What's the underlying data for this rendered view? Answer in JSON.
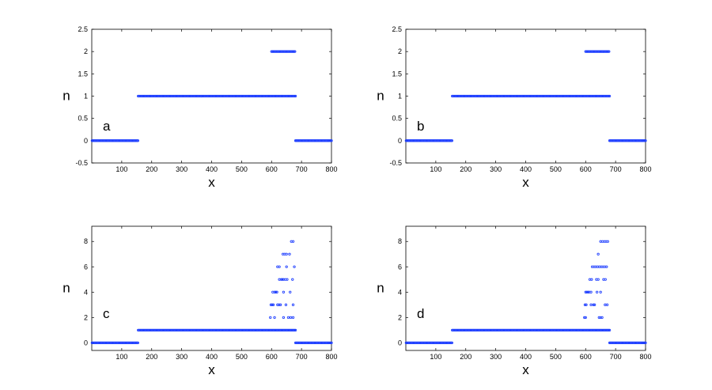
{
  "figure": {
    "marker_color": "#1f3fff",
    "marker": "circle"
  },
  "chart_data": [
    {
      "type": "scatter",
      "panel_label": "a",
      "xlabel": "x",
      "ylabel": "n",
      "xlim": [
        0,
        800
      ],
      "ylim": [
        -0.5,
        2.5
      ],
      "xticks": [
        100,
        200,
        300,
        400,
        500,
        600,
        700,
        800
      ],
      "yticks": [
        -0.5,
        0,
        0.5,
        1,
        1.5,
        2,
        2.5
      ],
      "x_tick_labels": [
        "100",
        "200",
        "300",
        "400",
        "500",
        "600",
        "700",
        "800"
      ],
      "y_tick_labels": [
        "-0.5",
        "0",
        "0.5",
        "1",
        "1.5",
        "2",
        "2.5"
      ],
      "segments": [
        {
          "n": 0,
          "x_start": 1,
          "x_end": 155
        },
        {
          "n": 1,
          "x_start": 155,
          "x_end": 680
        },
        {
          "n": 2,
          "x_start": 600,
          "x_end": 678
        },
        {
          "n": 0,
          "x_start": 680,
          "x_end": 800
        }
      ],
      "points": []
    },
    {
      "type": "scatter",
      "panel_label": "b",
      "xlabel": "x",
      "ylabel": "n",
      "xlim": [
        0,
        800
      ],
      "ylim": [
        -0.5,
        2.5
      ],
      "xticks": [
        100,
        200,
        300,
        400,
        500,
        600,
        700,
        800
      ],
      "yticks": [
        -0.5,
        0,
        0.5,
        1,
        1.5,
        2,
        2.5
      ],
      "x_tick_labels": [
        "100",
        "200",
        "300",
        "400",
        "500",
        "600",
        "700",
        "800"
      ],
      "y_tick_labels": [
        "-0.5",
        "0",
        "0.5",
        "1",
        "1.5",
        "2",
        "2.5"
      ],
      "segments": [
        {
          "n": 0,
          "x_start": 1,
          "x_end": 155
        },
        {
          "n": 1,
          "x_start": 155,
          "x_end": 680
        },
        {
          "n": 2,
          "x_start": 600,
          "x_end": 678
        },
        {
          "n": 0,
          "x_start": 680,
          "x_end": 800
        }
      ],
      "points": []
    },
    {
      "type": "scatter",
      "panel_label": "c",
      "xlabel": "x",
      "ylabel": "n",
      "xlim": [
        0,
        800
      ],
      "ylim": [
        -0.6,
        9.2
      ],
      "xticks": [
        100,
        200,
        300,
        400,
        500,
        600,
        700,
        800
      ],
      "yticks": [
        0,
        2,
        4,
        6,
        8
      ],
      "x_tick_labels": [
        "100",
        "200",
        "300",
        "400",
        "500",
        "600",
        "700",
        "800"
      ],
      "y_tick_labels": [
        "0",
        "2",
        "4",
        "6",
        "8"
      ],
      "segments": [
        {
          "n": 0,
          "x_start": 1,
          "x_end": 155
        },
        {
          "n": 1,
          "x_start": 155,
          "x_end": 680
        },
        {
          "n": 0,
          "x_start": 680,
          "x_end": 800
        }
      ],
      "points": [
        {
          "x": 596,
          "n": 2
        },
        {
          "x": 610,
          "n": 2
        },
        {
          "x": 640,
          "n": 2
        },
        {
          "x": 656,
          "n": 2
        },
        {
          "x": 664,
          "n": 2
        },
        {
          "x": 672,
          "n": 2
        },
        {
          "x": 598,
          "n": 3
        },
        {
          "x": 602,
          "n": 3
        },
        {
          "x": 606,
          "n": 3
        },
        {
          "x": 620,
          "n": 3
        },
        {
          "x": 625,
          "n": 3
        },
        {
          "x": 630,
          "n": 3
        },
        {
          "x": 648,
          "n": 3
        },
        {
          "x": 672,
          "n": 3
        },
        {
          "x": 604,
          "n": 4
        },
        {
          "x": 610,
          "n": 4
        },
        {
          "x": 614,
          "n": 4
        },
        {
          "x": 618,
          "n": 4
        },
        {
          "x": 640,
          "n": 4
        },
        {
          "x": 662,
          "n": 4
        },
        {
          "x": 626,
          "n": 5
        },
        {
          "x": 632,
          "n": 5
        },
        {
          "x": 636,
          "n": 5
        },
        {
          "x": 640,
          "n": 5
        },
        {
          "x": 646,
          "n": 5
        },
        {
          "x": 652,
          "n": 5
        },
        {
          "x": 670,
          "n": 5
        },
        {
          "x": 620,
          "n": 6
        },
        {
          "x": 626,
          "n": 6
        },
        {
          "x": 650,
          "n": 6
        },
        {
          "x": 676,
          "n": 6
        },
        {
          "x": 638,
          "n": 7
        },
        {
          "x": 644,
          "n": 7
        },
        {
          "x": 650,
          "n": 7
        },
        {
          "x": 660,
          "n": 7
        },
        {
          "x": 666,
          "n": 8
        },
        {
          "x": 672,
          "n": 8
        }
      ]
    },
    {
      "type": "scatter",
      "panel_label": "d",
      "xlabel": "x",
      "ylabel": "n",
      "xlim": [
        0,
        800
      ],
      "ylim": [
        -0.6,
        9.2
      ],
      "xticks": [
        100,
        200,
        300,
        400,
        500,
        600,
        700,
        800
      ],
      "yticks": [
        0,
        2,
        4,
        6,
        8
      ],
      "x_tick_labels": [
        "100",
        "200",
        "300",
        "400",
        "500",
        "600",
        "700",
        "800"
      ],
      "y_tick_labels": [
        "0",
        "2",
        "4",
        "6",
        "8"
      ],
      "segments": [
        {
          "n": 0,
          "x_start": 1,
          "x_end": 155
        },
        {
          "n": 1,
          "x_start": 155,
          "x_end": 680
        },
        {
          "n": 0,
          "x_start": 680,
          "x_end": 800
        }
      ],
      "points": [
        {
          "x": 596,
          "n": 2
        },
        {
          "x": 600,
          "n": 2
        },
        {
          "x": 645,
          "n": 2
        },
        {
          "x": 650,
          "n": 2
        },
        {
          "x": 655,
          "n": 2
        },
        {
          "x": 598,
          "n": 3
        },
        {
          "x": 602,
          "n": 3
        },
        {
          "x": 618,
          "n": 3
        },
        {
          "x": 626,
          "n": 3
        },
        {
          "x": 630,
          "n": 3
        },
        {
          "x": 665,
          "n": 3
        },
        {
          "x": 672,
          "n": 3
        },
        {
          "x": 600,
          "n": 4
        },
        {
          "x": 604,
          "n": 4
        },
        {
          "x": 608,
          "n": 4
        },
        {
          "x": 612,
          "n": 4
        },
        {
          "x": 618,
          "n": 4
        },
        {
          "x": 638,
          "n": 4
        },
        {
          "x": 650,
          "n": 4
        },
        {
          "x": 614,
          "n": 5
        },
        {
          "x": 620,
          "n": 5
        },
        {
          "x": 636,
          "n": 5
        },
        {
          "x": 642,
          "n": 5
        },
        {
          "x": 660,
          "n": 5
        },
        {
          "x": 666,
          "n": 5
        },
        {
          "x": 622,
          "n": 6
        },
        {
          "x": 628,
          "n": 6
        },
        {
          "x": 634,
          "n": 6
        },
        {
          "x": 640,
          "n": 6
        },
        {
          "x": 646,
          "n": 6
        },
        {
          "x": 652,
          "n": 6
        },
        {
          "x": 658,
          "n": 6
        },
        {
          "x": 664,
          "n": 6
        },
        {
          "x": 670,
          "n": 6
        },
        {
          "x": 642,
          "n": 7
        },
        {
          "x": 650,
          "n": 8
        },
        {
          "x": 656,
          "n": 8
        },
        {
          "x": 662,
          "n": 8
        },
        {
          "x": 668,
          "n": 8
        },
        {
          "x": 674,
          "n": 8
        }
      ]
    }
  ]
}
